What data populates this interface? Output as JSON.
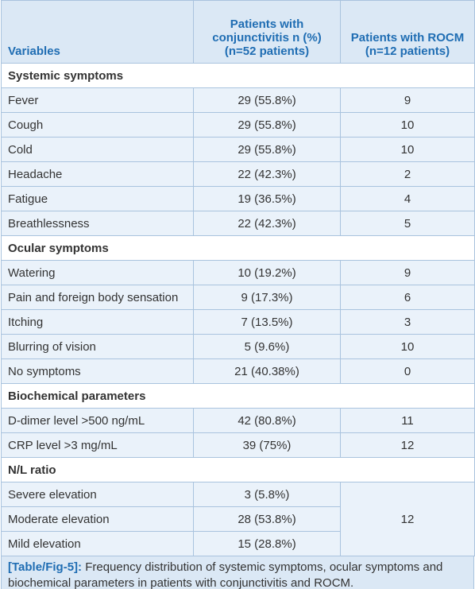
{
  "table": {
    "columns": [
      "Variables",
      "Patients with conjunctivitis n (%) (n=52 patients)",
      "Patients with ROCM (n=12 patients)"
    ],
    "sections": [
      {
        "title": "Systemic symptoms",
        "rows": [
          [
            "Fever",
            "29 (55.8%)",
            "9"
          ],
          [
            "Cough",
            "29 (55.8%)",
            "10"
          ],
          [
            "Cold",
            "29 (55.8%)",
            "10"
          ],
          [
            "Headache",
            "22 (42.3%)",
            "2"
          ],
          [
            "Fatigue",
            "19 (36.5%)",
            "4"
          ],
          [
            "Breathlessness",
            "22 (42.3%)",
            "5"
          ]
        ]
      },
      {
        "title": "Ocular symptoms",
        "rows": [
          [
            "Watering",
            "10 (19.2%)",
            "9"
          ],
          [
            "Pain and foreign body sensation",
            "9 (17.3%)",
            "6"
          ],
          [
            "Itching",
            "7 (13.5%)",
            "3"
          ],
          [
            "Blurring of vision",
            "5 (9.6%)",
            "10"
          ],
          [
            "No symptoms",
            "21 (40.38%)",
            "0"
          ]
        ]
      },
      {
        "title": "Biochemical parameters",
        "rows": [
          [
            "D-dimer level >500 ng/mL",
            "42 (80.8%)",
            "11"
          ],
          [
            "CRP level >3 mg/mL",
            "39 (75%)",
            "12"
          ]
        ]
      },
      {
        "title": "N/L ratio",
        "rows": [
          [
            "Severe elevation",
            "3 (5.8%)"
          ],
          [
            "Moderate elevation",
            "28 (53.8%)"
          ],
          [
            "Mild elevation",
            "15 (28.8%)"
          ]
        ],
        "shared_rocm": "12"
      }
    ]
  },
  "caption": {
    "label": "[Table/Fig-5]:",
    "text": "Frequency distribution of systemic symptoms, ocular symptoms and biochemical parameters in patients with conjunctivitis and ROCM."
  }
}
